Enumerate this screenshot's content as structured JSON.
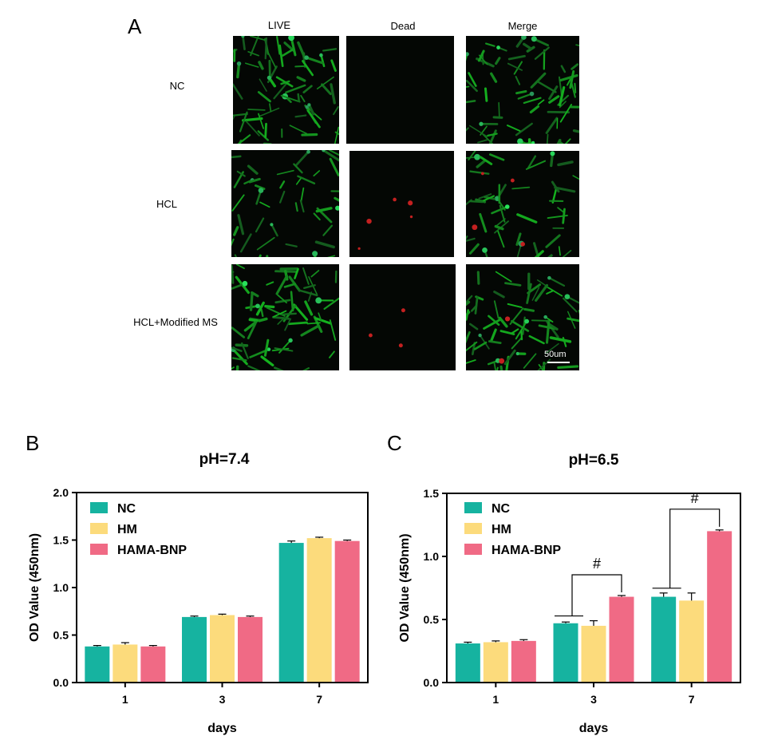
{
  "panelA": {
    "letter": "A",
    "columns": [
      "LIVE",
      "Dead",
      "Merge"
    ],
    "rows": [
      "NC",
      "HCL",
      "HCL+Modified MS"
    ],
    "scale_bar": "50um"
  },
  "colors": {
    "NC": "#16b3a0",
    "HM": "#fcdb7c",
    "HAMA-BNP": "#f06a85"
  },
  "chart_data": [
    {
      "letter": "B",
      "type": "bar",
      "title": "pH=7.4",
      "xlabel": "days",
      "ylabel": "OD Value (450nm)",
      "categories": [
        "1",
        "3",
        "7"
      ],
      "ylim": [
        0,
        2.0
      ],
      "yticks": [
        "0.0",
        "0.5",
        "1.0",
        "1.5",
        "2.0"
      ],
      "legend": "top-left",
      "series": [
        {
          "name": "NC",
          "values": [
            0.38,
            0.69,
            1.47
          ],
          "errors": [
            0.01,
            0.01,
            0.02
          ]
        },
        {
          "name": "HM",
          "values": [
            0.4,
            0.71,
            1.52
          ],
          "errors": [
            0.02,
            0.01,
            0.01
          ]
        },
        {
          "name": "HAMA-BNP",
          "values": [
            0.38,
            0.69,
            1.49
          ],
          "errors": [
            0.01,
            0.01,
            0.01
          ]
        }
      ],
      "annotations": []
    },
    {
      "letter": "C",
      "type": "bar",
      "title": "pH=6.5",
      "xlabel": "days",
      "ylabel": "OD Value (450nm)",
      "categories": [
        "1",
        "3",
        "7"
      ],
      "ylim": [
        0,
        1.5
      ],
      "yticks": [
        "0.0",
        "0.5",
        "1.0",
        "1.5"
      ],
      "legend": "top-left",
      "series": [
        {
          "name": "NC",
          "values": [
            0.31,
            0.47,
            0.68
          ],
          "errors": [
            0.01,
            0.01,
            0.03
          ]
        },
        {
          "name": "HM",
          "values": [
            0.32,
            0.45,
            0.65
          ],
          "errors": [
            0.01,
            0.04,
            0.06
          ]
        },
        {
          "name": "HAMA-BNP",
          "values": [
            0.33,
            0.68,
            1.2
          ],
          "errors": [
            0.01,
            0.01,
            0.01
          ]
        }
      ],
      "annotations": [
        {
          "category": "3",
          "label": "#"
        },
        {
          "category": "7",
          "label": "#"
        }
      ]
    }
  ]
}
